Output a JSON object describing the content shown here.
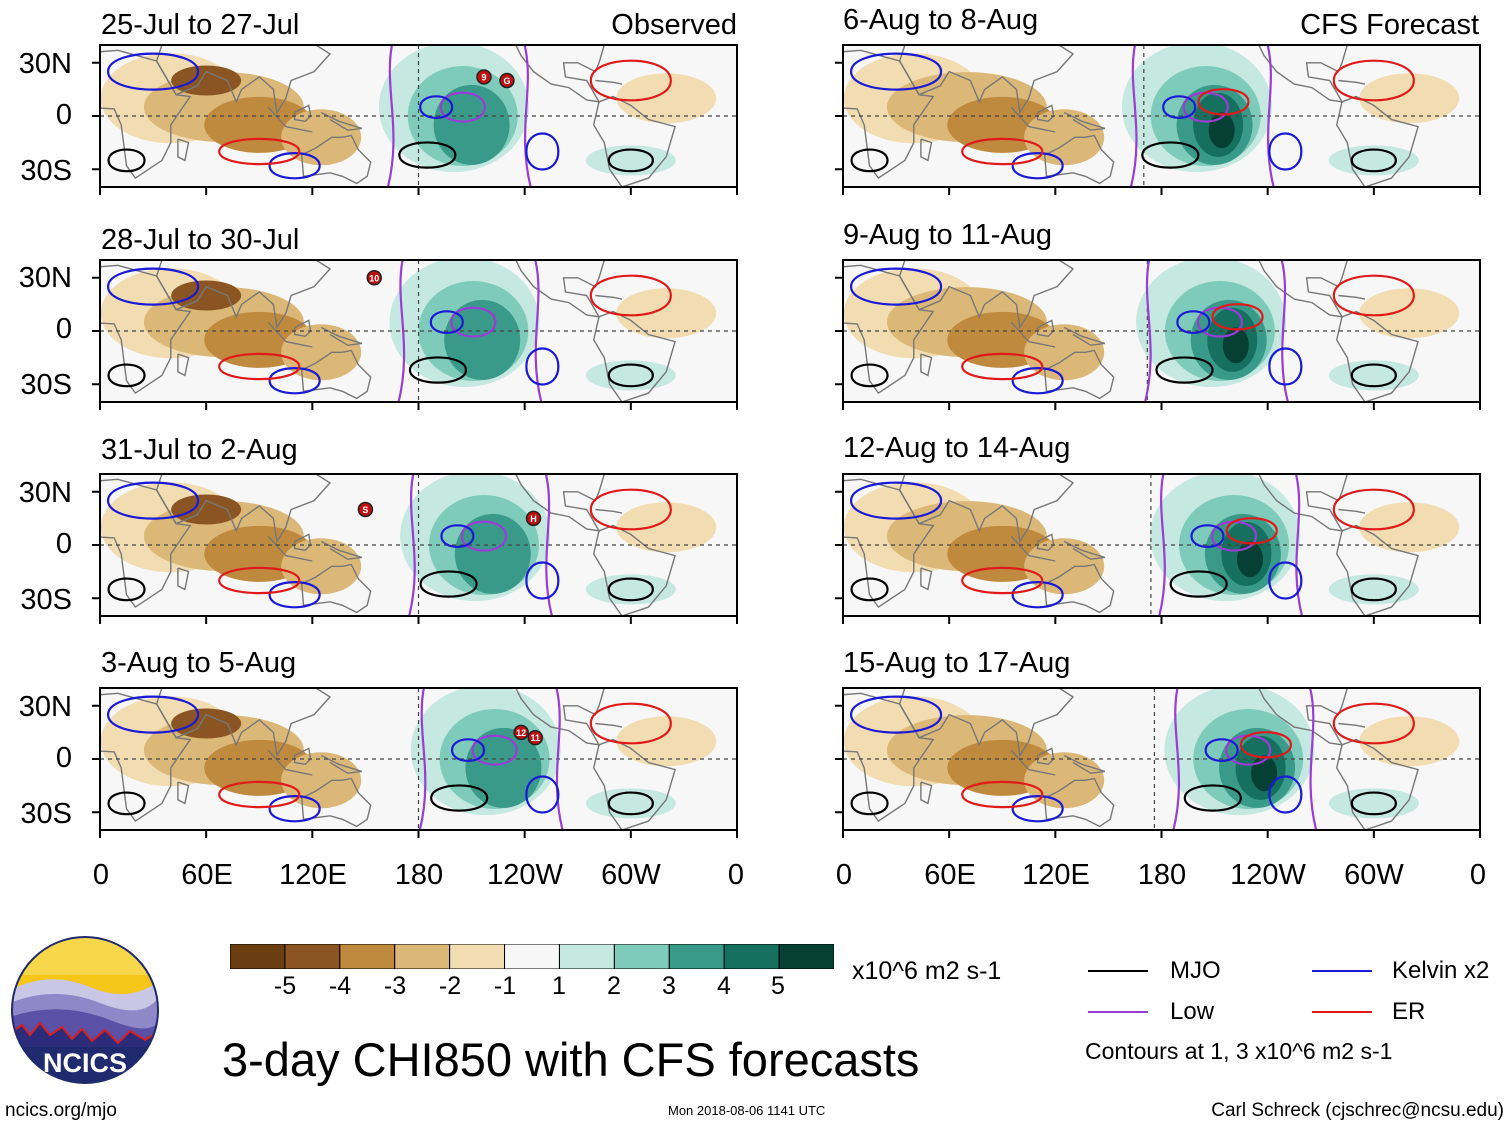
{
  "observed_label": "Observed",
  "forecast_label": "CFS Forecast",
  "panels_left": [
    {
      "title": "25-Jul to 27-Jul"
    },
    {
      "title": "28-Jul to 30-Jul"
    },
    {
      "title": "31-Jul to 2-Aug"
    },
    {
      "title": "3-Aug to 5-Aug"
    }
  ],
  "panels_right": [
    {
      "title": "6-Aug to 8-Aug"
    },
    {
      "title": "9-Aug to 11-Aug"
    },
    {
      "title": "12-Aug to 14-Aug"
    },
    {
      "title": "15-Aug to 17-Aug"
    }
  ],
  "y_ticks": [
    "30N",
    "0",
    "30S"
  ],
  "x_ticks": [
    "0",
    "60E",
    "120E",
    "180",
    "120W",
    "60W",
    "0"
  ],
  "colorbar": {
    "units": "x10^6 m2 s-1",
    "labels": [
      "-5",
      "-4",
      "-3",
      "-2",
      "-1",
      "1",
      "2",
      "3",
      "4",
      "5"
    ],
    "colors": [
      "#6b3e12",
      "#8a5522",
      "#c08a3e",
      "#dcb878",
      "#f2ddb2",
      "#f7f7f7",
      "#c5e8e0",
      "#7fcbbb",
      "#3a9a8a",
      "#15705f",
      "#063f33"
    ]
  },
  "legend": {
    "items": [
      {
        "label": "MJO",
        "color": "#000000"
      },
      {
        "label": "Kelvin x2",
        "color": "#1a1ad6"
      },
      {
        "label": "Low",
        "color": "#9a3cd6"
      },
      {
        "label": "ER",
        "color": "#e01a1a"
      }
    ],
    "note": "Contours at 1, 3 x10^6 m2 s-1"
  },
  "storm_markers": [
    {
      "panel": 0,
      "label": "9"
    },
    {
      "panel": 0,
      "label": "G"
    },
    {
      "panel": 1,
      "label": "10"
    },
    {
      "panel": 2,
      "label": "S"
    },
    {
      "panel": 2,
      "label": "H"
    },
    {
      "panel": 3,
      "label": "12"
    },
    {
      "panel": 3,
      "label": "11"
    }
  ],
  "main_title": "3-day CHI850 with CFS forecasts",
  "logo_text": "NCICS",
  "footer": {
    "url": "ncics.org/mjo",
    "timestamp": "Mon 2018-08-06 1141 UTC",
    "author": "Carl Schreck (cjschrec@ncsu.edu)"
  }
}
